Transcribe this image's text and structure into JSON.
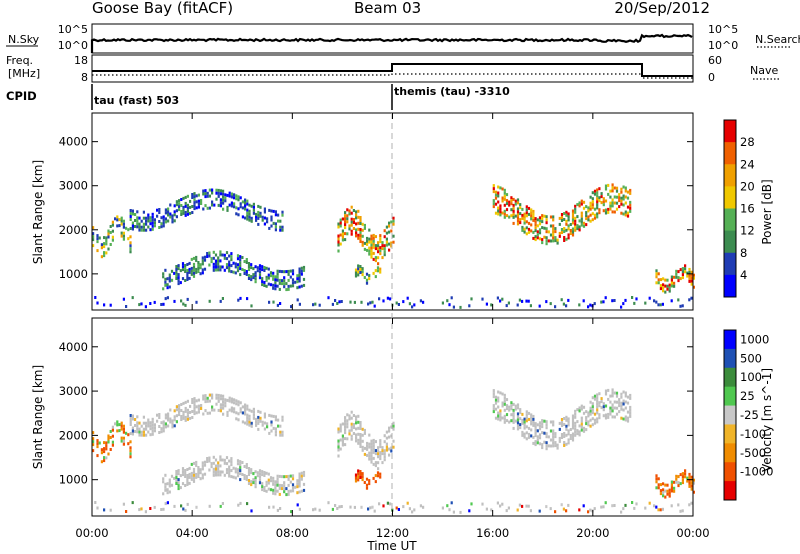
{
  "header": {
    "station": "Goose Bay (fitACF)",
    "beam": "Beam 03",
    "date": "20/Sep/2012"
  },
  "top_panel_labels": {
    "nsky": "N.Sky",
    "nsearch": "N.Search",
    "freq": "Freq.",
    "freq_unit": "[MHz]",
    "nave": "Nave",
    "cpid": "CPID"
  },
  "noise_axis": {
    "ticks_left": [
      "10^5",
      "10^0"
    ],
    "ticks_right": [
      "10^5",
      "10^0"
    ]
  },
  "freq_axis": {
    "ticks_left": [
      "18",
      "8"
    ],
    "ticks_right": [
      "60",
      "0"
    ]
  },
  "cpid_segments": [
    {
      "label": "tau (fast) 503",
      "start_hour": 0,
      "end_hour": 12
    },
    {
      "label": "themis (tau) -3310",
      "start_hour": 12,
      "end_hour": 24
    }
  ],
  "colors": {
    "power_scale": [
      "#0000ff",
      "#1f3cb4",
      "#3c8c50",
      "#55b055",
      "#f0c800",
      "#f0a000",
      "#f06000",
      "#e60000"
    ],
    "velocity_scale": [
      "#0000ff",
      "#1e50b4",
      "#3c8c3c",
      "#50c850",
      "#c8c8c8",
      "#f0b428",
      "#f08c00",
      "#f05000",
      "#e60000"
    ],
    "ground_scatter": "#c0c0c0"
  },
  "chart_data": [
    {
      "type": "heatmap",
      "name": "power",
      "ylabel": "Slant Range [km]",
      "xlim": [
        0,
        24
      ],
      "ylim": [
        180,
        4650
      ],
      "yticks": [
        1000,
        2000,
        3000,
        4000
      ],
      "colorbar": {
        "label": "Power [dB]",
        "ticks": [
          "28",
          "24",
          "20",
          "16",
          "12",
          "8",
          "4"
        ],
        "range": [
          0,
          30
        ]
      },
      "echo_regions": [
        {
          "hours": [
            0.0,
            1.5
          ],
          "range_km": [
            1400,
            2300
          ],
          "level": "medium"
        },
        {
          "hours": [
            1.5,
            7.6
          ],
          "range_km": [
            2000,
            2900
          ],
          "level": "low"
        },
        {
          "hours": [
            2.8,
            8.5
          ],
          "range_km": [
            700,
            1500
          ],
          "level": "low"
        },
        {
          "hours": [
            9.8,
            12.0
          ],
          "range_km": [
            1300,
            2500
          ],
          "level": "high"
        },
        {
          "hours": [
            10.5,
            11.5
          ],
          "range_km": [
            800,
            1200
          ],
          "level": "medium"
        },
        {
          "hours": [
            16.0,
            21.5
          ],
          "range_km": [
            1700,
            3000
          ],
          "level": "high"
        },
        {
          "hours": [
            22.5,
            24.0
          ],
          "range_km": [
            600,
            1200
          ],
          "level": "high"
        }
      ]
    },
    {
      "type": "heatmap",
      "name": "velocity",
      "ylabel": "Slant Range [km]",
      "xlabel": "Time UT",
      "xlim": [
        0,
        24
      ],
      "ylim": [
        180,
        4650
      ],
      "xticks": [
        "00:00",
        "04:00",
        "08:00",
        "12:00",
        "16:00",
        "20:00",
        "00:00"
      ],
      "yticks": [
        1000,
        2000,
        3000,
        4000
      ],
      "colorbar": {
        "label": "Velocity [m s^-1]",
        "ticks": [
          "1000",
          "500",
          "100",
          "25",
          "-25",
          "-100",
          "-500",
          "-1000"
        ],
        "range": [
          -1000,
          1000
        ]
      },
      "echo_regions": [
        {
          "hours": [
            0.0,
            1.5
          ],
          "range_km": [
            1400,
            2300
          ],
          "velocity": "mostly -100 to -500"
        },
        {
          "hours": [
            1.5,
            7.6
          ],
          "range_km": [
            2000,
            2900
          ],
          "velocity": "near zero"
        },
        {
          "hours": [
            10.5,
            11.5
          ],
          "range_km": [
            800,
            1200
          ],
          "velocity": "-500"
        },
        {
          "hours": [
            16.0,
            21.5
          ],
          "range_km": [
            1700,
            3000
          ],
          "velocity": "near zero"
        },
        {
          "hours": [
            22.5,
            24.0
          ],
          "range_km": [
            600,
            1200
          ],
          "velocity": "-100 to -500"
        }
      ]
    }
  ]
}
